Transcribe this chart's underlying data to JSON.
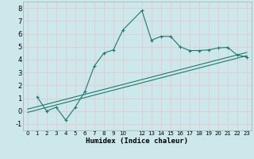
{
  "title": "",
  "xlabel": "Humidex (Indice chaleur)",
  "bg_color": "#cce8eb",
  "grid_color": "#e8c8c8",
  "line_color": "#1a7a6e",
  "xlim": [
    -0.5,
    23.5
  ],
  "ylim": [
    -1.5,
    8.5
  ],
  "xticks": [
    0,
    1,
    2,
    3,
    4,
    5,
    6,
    7,
    8,
    9,
    10,
    12,
    13,
    14,
    15,
    16,
    17,
    18,
    19,
    20,
    21,
    22,
    23
  ],
  "yticks": [
    -1,
    0,
    1,
    2,
    3,
    4,
    5,
    6,
    7,
    8
  ],
  "curve_x": [
    1,
    2,
    3,
    4,
    5,
    6,
    7,
    8,
    9,
    10,
    12,
    13,
    14,
    15,
    16,
    17,
    18,
    19,
    20,
    21,
    22,
    23
  ],
  "curve_y": [
    1.1,
    0.0,
    0.3,
    -0.7,
    0.3,
    1.5,
    3.5,
    4.5,
    4.75,
    6.3,
    7.8,
    5.5,
    5.8,
    5.8,
    5.0,
    4.7,
    4.7,
    4.75,
    4.9,
    4.95,
    4.35,
    4.2
  ],
  "trend1_x": [
    0,
    23
  ],
  "trend1_y": [
    0.15,
    4.55
  ],
  "trend2_x": [
    0,
    23
  ],
  "trend2_y": [
    -0.1,
    4.3
  ]
}
